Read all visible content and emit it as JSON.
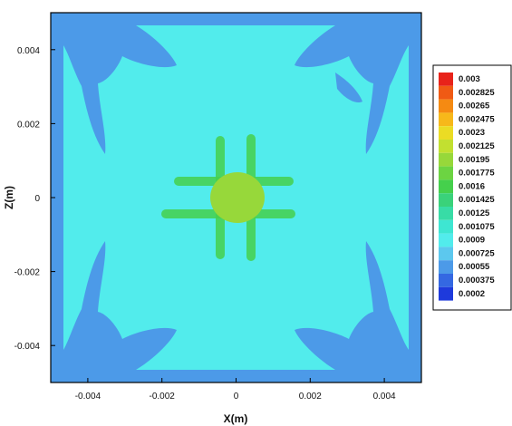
{
  "chart_data": {
    "type": "heatmap",
    "title": "",
    "xlabel": "X(m)",
    "ylabel": "Z(m)",
    "xlim": [
      -0.005,
      0.005
    ],
    "ylim": [
      -0.005,
      0.005
    ],
    "x_ticks": [
      {
        "value": -0.004,
        "label": "-0.004"
      },
      {
        "value": -0.002,
        "label": "-0.002"
      },
      {
        "value": 0,
        "label": "0"
      },
      {
        "value": 0.002,
        "label": "0.002"
      },
      {
        "value": 0.004,
        "label": "0.004"
      }
    ],
    "y_ticks": [
      {
        "value": 0.004,
        "label": "0.004"
      },
      {
        "value": 0.002,
        "label": "0.002"
      },
      {
        "value": 0,
        "label": "0"
      },
      {
        "value": -0.002,
        "label": "-0.002"
      },
      {
        "value": -0.004,
        "label": "-0.004"
      }
    ],
    "grid": false,
    "legend_position": "right",
    "contour_levels": [
      {
        "label": "0.003",
        "color": "#e8231a"
      },
      {
        "label": "0.002825",
        "color": "#f05a14"
      },
      {
        "label": "0.00265",
        "color": "#f58a12"
      },
      {
        "label": "0.002475",
        "color": "#f7b81a"
      },
      {
        "label": "0.0023",
        "color": "#ebdc24"
      },
      {
        "label": "0.002125",
        "color": "#c2e030"
      },
      {
        "label": "0.00195",
        "color": "#97d83a"
      },
      {
        "label": "0.001775",
        "color": "#6cd442"
      },
      {
        "label": "0.0016",
        "color": "#45d04c"
      },
      {
        "label": "0.001425",
        "color": "#3ad27a"
      },
      {
        "label": "0.00125",
        "color": "#38dca6"
      },
      {
        "label": "0.001075",
        "color": "#3ee6d2"
      },
      {
        "label": "0.0009",
        "color": "#52ecec"
      },
      {
        "label": "0.000725",
        "color": "#5cc8ee"
      },
      {
        "label": "0.00055",
        "color": "#4c9ae8"
      },
      {
        "label": "0.000375",
        "color": "#3468e2"
      },
      {
        "label": "0.0002",
        "color": "#1e3adc"
      }
    ],
    "field": {
      "background_value": 0.0009,
      "edge_value": 0.00055,
      "center_value": 0.00195,
      "cross_value": 0.0016
    }
  }
}
